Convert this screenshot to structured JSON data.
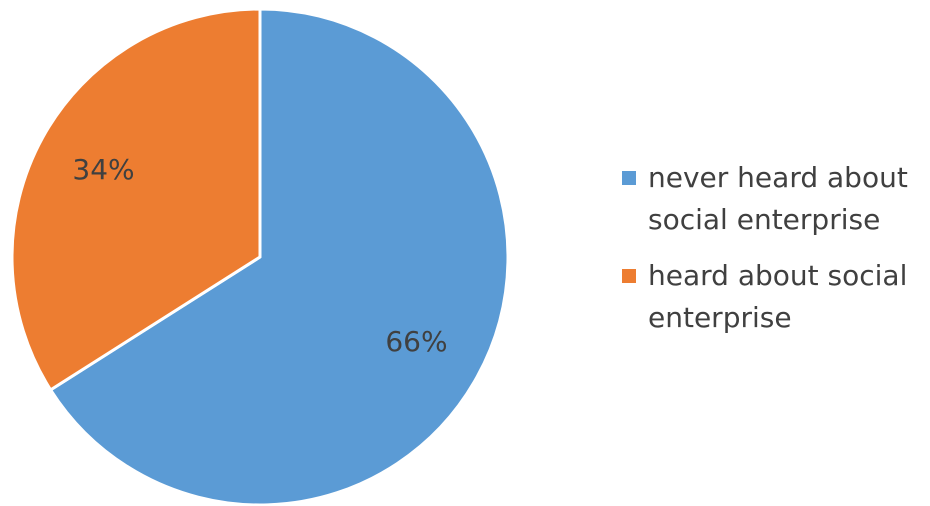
{
  "chart_data": {
    "type": "pie",
    "slices": [
      {
        "label": "never heard about social enterprise",
        "value": 66,
        "display": "66%",
        "color": "#5B9BD5"
      },
      {
        "label": "heard about social enterprise",
        "value": 34,
        "display": "34%",
        "color": "#ED7D31"
      }
    ],
    "legend_position": "right",
    "start_angle": "12 o'clock, clockwise"
  }
}
